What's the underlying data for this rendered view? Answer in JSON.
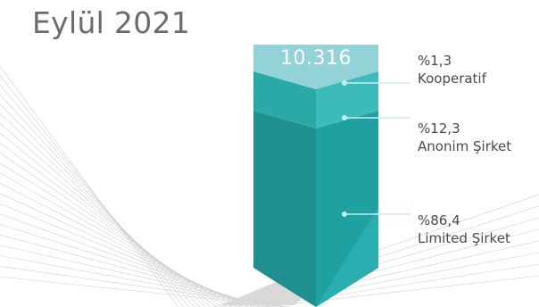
{
  "title": "Eylül 2021",
  "colors": {
    "top_face": "#93d2d6",
    "cap_front": "#7ac8cc",
    "mid_left": "#2ba9a8",
    "mid_right": "#3dbabb",
    "low_left": "#1f8f8f",
    "low_right": "#1fa0a1",
    "low_shadow": "#2aaeb0",
    "leader": "#c9ecee",
    "bg_lines": "#cfcfcf",
    "shadow": "#d9d9d9"
  },
  "chart_data": {
    "type": "bar",
    "stacked": true,
    "total": "10.316",
    "series": [
      {
        "percent_label": "%1,3",
        "label": "Kooperatif",
        "value": 1.3
      },
      {
        "percent_label": "%12,3",
        "label": "Anonim Şirket",
        "value": 12.3
      },
      {
        "percent_label": "%86,4",
        "label": "Limited Şirket",
        "value": 86.4
      }
    ]
  }
}
